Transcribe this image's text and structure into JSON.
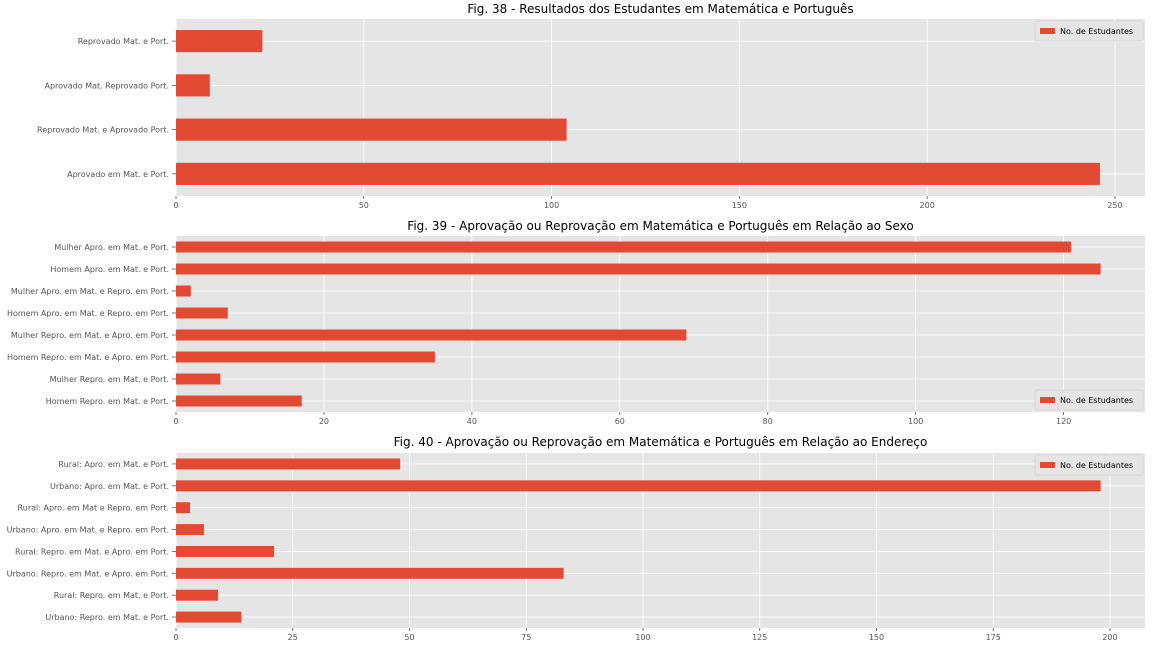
{
  "chart_data": [
    {
      "type": "bar",
      "orientation": "horizontal",
      "title": "Fig. 38 - Resultados dos Estudantes em Matemática e Português",
      "categories": [
        "Aprovado em Mat. e Port.",
        "Reprovado Mat. e Aprovado Port.",
        "Aprovado Mat. Reprovado Port.",
        "Reprovado Mat. e Port."
      ],
      "series": [
        {
          "name": "No. de Estudantes",
          "values": [
            246,
            104,
            9,
            23
          ]
        }
      ],
      "xlim": [
        0,
        258
      ],
      "xticks": [
        0,
        50,
        100,
        150,
        200,
        250
      ],
      "grid": true,
      "legend_position": "top-right",
      "bar_color": "#e24a33"
    },
    {
      "type": "bar",
      "orientation": "horizontal",
      "title": "Fig. 39 - Aprovação ou Reprovação em Matemática e Português em Relação ao Sexo",
      "categories": [
        "Homem Repro. em Mat. e Port.",
        "Mulher Repro. em Mat. e Port.",
        "Homem Repro. em Mat. e Apro. em Port.",
        "Mulher Repro. em Mat. e Apro. em Port.",
        "Homem Apro. em Mat. e Repro. em Port.",
        "Mulher Apro. em Mat. e Repro. em Port.",
        "Homem Apro. em Mat. e Port.",
        "Mulher Apro. em Mat. e Port."
      ],
      "series": [
        {
          "name": "No. de Estudantes",
          "values": [
            17,
            6,
            35,
            69,
            7,
            2,
            125,
            121
          ]
        }
      ],
      "xlim": [
        0,
        131
      ],
      "xticks": [
        0,
        20,
        40,
        60,
        80,
        100,
        120
      ],
      "grid": true,
      "legend_position": "lower-right",
      "bar_color": "#e24a33"
    },
    {
      "type": "bar",
      "orientation": "horizontal",
      "title": "Fig. 40 - Aprovação ou Reprovação em Matemática e Português em Relação ao Endereço",
      "categories": [
        "Urbano: Repro. em Mat. e Port.",
        "Rural: Repro. em Mat. e Port.",
        "Urbano: Repro. em Mat. e Apro. em Port.",
        "Rural: Repro. em Mat. e Apro. em Port.",
        "Urbano: Apro. em Mat. e Repro. em Port.",
        "Rural: Apro. em Mat e Repro. em Port.",
        "Urbano: Apro. em Mat. e Port.",
        "Rural: Apro. em Mat. e Port."
      ],
      "series": [
        {
          "name": "No. de Estudantes",
          "values": [
            14,
            9,
            83,
            21,
            6,
            3,
            198,
            48
          ]
        }
      ],
      "xlim": [
        0,
        207.5
      ],
      "xticks": [
        0,
        25,
        50,
        75,
        100,
        125,
        150,
        175,
        200
      ],
      "grid": true,
      "legend_position": "top-right",
      "bar_color": "#e24a33"
    }
  ]
}
